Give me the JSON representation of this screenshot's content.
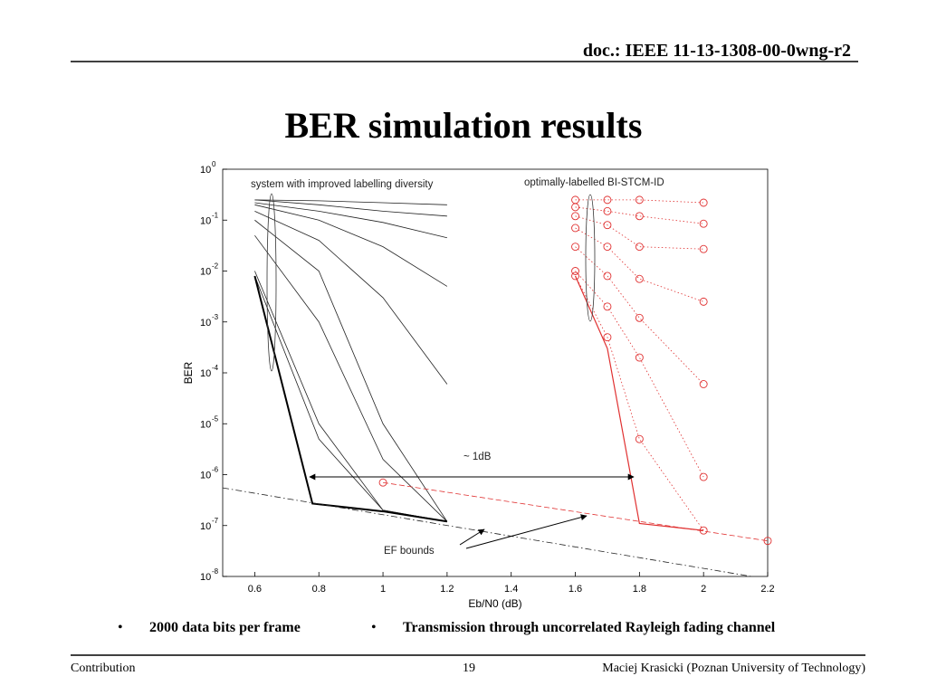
{
  "header": {
    "doc": "doc.: IEEE 11-13-1308-00-0wng-r2"
  },
  "title": "BER simulation results",
  "chart_data": {
    "type": "line",
    "xlabel": "Eb/N0 (dB)",
    "ylabel": "BER",
    "log_y": true,
    "xlim": [
      0.5,
      2.2
    ],
    "xticks": [
      0.6,
      0.8,
      1,
      1.2,
      1.4,
      1.6,
      1.8,
      2,
      2.2
    ],
    "ylim": [
      1e-08,
      1
    ],
    "yticks": [
      {
        "value": 1e-08,
        "label": "10",
        "exp": "-8"
      },
      {
        "value": 1e-07,
        "label": "10",
        "exp": "-7"
      },
      {
        "value": 1e-06,
        "label": "10",
        "exp": "-6"
      },
      {
        "value": 1e-05,
        "label": "10",
        "exp": "-5"
      },
      {
        "value": 0.0001,
        "label": "10",
        "exp": "-4"
      },
      {
        "value": 0.001,
        "label": "10",
        "exp": "-3"
      },
      {
        "value": 0.01,
        "label": "10",
        "exp": "-2"
      },
      {
        "value": 0.1,
        "label": "10",
        "exp": "-1"
      },
      {
        "value": 1,
        "label": "10",
        "exp": "0"
      }
    ],
    "annotations": [
      "system with improved labelling diversity",
      "optimally-labelled BI-STCM-ID",
      "~ 1dB",
      "EF bounds"
    ],
    "series": [
      {
        "color": "#222222",
        "style": "solid",
        "width": 0.8,
        "x": [
          0.6,
          0.8,
          1,
          1.2
        ],
        "values": [
          0.25,
          0.24,
          0.22,
          0.2
        ]
      },
      {
        "color": "#222222",
        "style": "solid",
        "width": 0.8,
        "x": [
          0.6,
          0.8,
          1,
          1.2
        ],
        "values": [
          0.25,
          0.2,
          0.15,
          0.12
        ]
      },
      {
        "color": "#222222",
        "style": "solid",
        "width": 0.8,
        "x": [
          0.6,
          0.8,
          1,
          1.2
        ],
        "values": [
          0.22,
          0.15,
          0.09,
          0.045
        ]
      },
      {
        "color": "#222222",
        "style": "solid",
        "width": 0.8,
        "x": [
          0.6,
          0.8,
          1,
          1.2
        ],
        "values": [
          0.2,
          0.1,
          0.03,
          0.005
        ]
      },
      {
        "color": "#222222",
        "style": "solid",
        "width": 0.8,
        "x": [
          0.6,
          0.8,
          1,
          1.2
        ],
        "values": [
          0.15,
          0.04,
          0.003,
          6e-05
        ]
      },
      {
        "color": "#222222",
        "style": "solid",
        "width": 0.8,
        "x": [
          0.6,
          0.8,
          1,
          1.2
        ],
        "values": [
          0.1,
          0.01,
          1e-05,
          1.2e-07
        ]
      },
      {
        "color": "#222222",
        "style": "solid",
        "width": 0.8,
        "x": [
          0.6,
          0.8,
          1,
          1.2
        ],
        "values": [
          0.05,
          0.001,
          2e-06,
          1.2e-07
        ]
      },
      {
        "color": "#222222",
        "style": "solid",
        "width": 0.8,
        "x": [
          0.6,
          0.8,
          1,
          1.2
        ],
        "values": [
          0.01,
          1e-05,
          2e-07,
          1.2e-07
        ]
      },
      {
        "color": "#222222",
        "style": "solid",
        "width": 0.8,
        "x": [
          0.6,
          0.8,
          1,
          1.2
        ],
        "values": [
          0.008,
          5e-06,
          2e-07,
          1.2e-07
        ]
      },
      {
        "color": "#000000",
        "style": "solid",
        "width": 2,
        "x": [
          0.6,
          0.78,
          1,
          1.2
        ],
        "values": [
          0.008,
          2.7e-07,
          1.9e-07,
          1.2e-07
        ]
      },
      {
        "color": "#222222",
        "style": "dashdot",
        "width": 0.8,
        "x": [
          0.5,
          2.15
        ],
        "values": [
          5.5e-07,
          1e-08
        ]
      },
      {
        "color": "#e03030",
        "style": "dotted",
        "width": 0.8,
        "marker": "circle",
        "x": [
          1.6,
          1.7,
          1.8,
          2
        ],
        "values": [
          0.25,
          0.25,
          0.25,
          0.22
        ]
      },
      {
        "color": "#e03030",
        "style": "dotted",
        "width": 0.8,
        "marker": "circle",
        "x": [
          1.6,
          1.7,
          1.8,
          2
        ],
        "values": [
          0.18,
          0.15,
          0.12,
          0.085
        ]
      },
      {
        "color": "#e03030",
        "style": "dotted",
        "width": 0.8,
        "marker": "circle",
        "x": [
          1.6,
          1.7,
          1.8,
          2
        ],
        "values": [
          0.12,
          0.08,
          0.03,
          0.027
        ]
      },
      {
        "color": "#e03030",
        "style": "dotted",
        "width": 0.8,
        "marker": "circle",
        "x": [
          1.6,
          1.7,
          1.8,
          2
        ],
        "values": [
          0.07,
          0.03,
          0.007,
          0.0025
        ]
      },
      {
        "color": "#e03030",
        "style": "dotted",
        "width": 0.8,
        "marker": "circle",
        "x": [
          1.6,
          1.7,
          1.8,
          2
        ],
        "values": [
          0.03,
          0.008,
          0.0012,
          6e-05
        ]
      },
      {
        "color": "#e03030",
        "style": "dotted",
        "width": 0.8,
        "marker": "circle",
        "x": [
          1.6,
          1.7,
          1.8,
          2
        ],
        "values": [
          0.01,
          0.002,
          0.0002,
          9e-07
        ]
      },
      {
        "color": "#e03030",
        "style": "dotted",
        "width": 0.8,
        "marker": "circle",
        "x": [
          1.6,
          1.7,
          1.8,
          2
        ],
        "values": [
          0.008,
          0.0005,
          5e-06,
          8e-08
        ]
      },
      {
        "color": "#e03030",
        "style": "solid",
        "width": 1.2,
        "x": [
          1.6,
          1.7,
          1.8,
          2
        ],
        "values": [
          0.008,
          0.0003,
          1.1e-07,
          8e-08
        ]
      },
      {
        "color": "#e03030",
        "style": "dashed",
        "width": 0.8,
        "marker": "circle",
        "x": [
          1,
          2.2
        ],
        "values": [
          7e-07,
          5e-08
        ]
      }
    ]
  },
  "bullets": [
    "2000 data bits per frame",
    "Transmission through uncorrelated Rayleigh fading channel"
  ],
  "footer": {
    "left": "Contribution",
    "page": "19",
    "right": "Maciej Krasicki (Poznan University of Technology)"
  }
}
